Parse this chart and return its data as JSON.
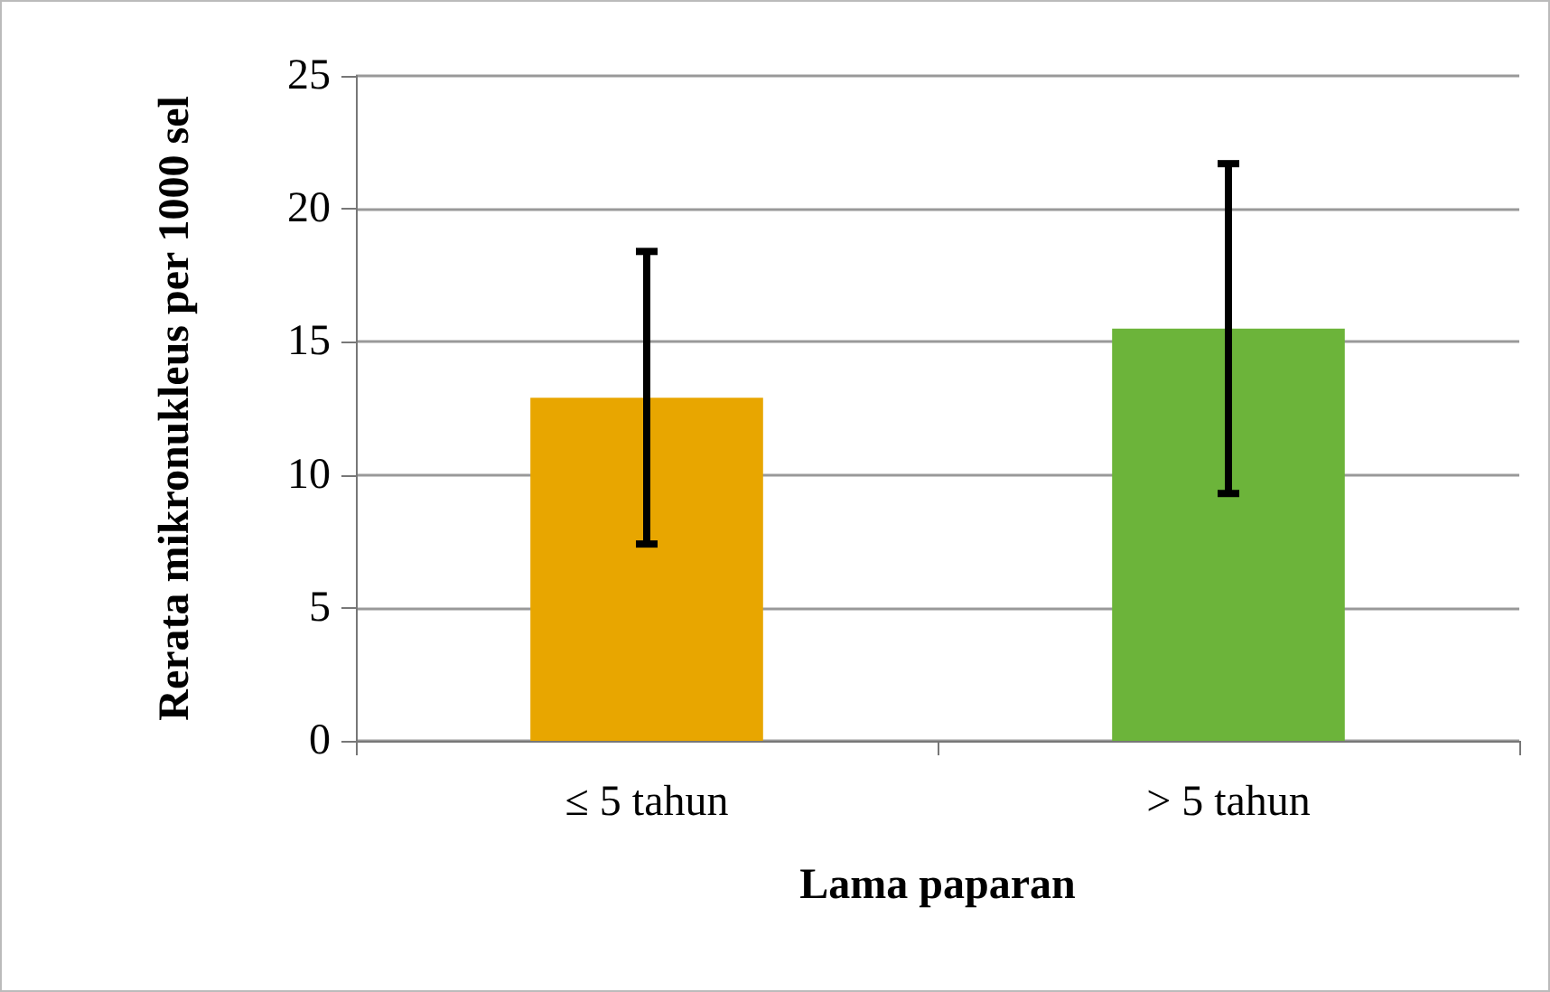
{
  "chart_data": {
    "type": "bar",
    "categories": [
      "≤ 5 tahun",
      "> 5 tahun"
    ],
    "values": [
      12.9,
      15.5
    ],
    "errors": [
      5.5,
      6.2
    ],
    "colors": [
      "#e8a600",
      "#6cb43a"
    ],
    "xlabel": "Lama paparan",
    "ylabel": "Rerata mikronukleus per 1000 sel",
    "ylim": [
      0,
      25
    ],
    "yticks": [
      0,
      5,
      10,
      15,
      20,
      25
    ],
    "grid": "y"
  }
}
